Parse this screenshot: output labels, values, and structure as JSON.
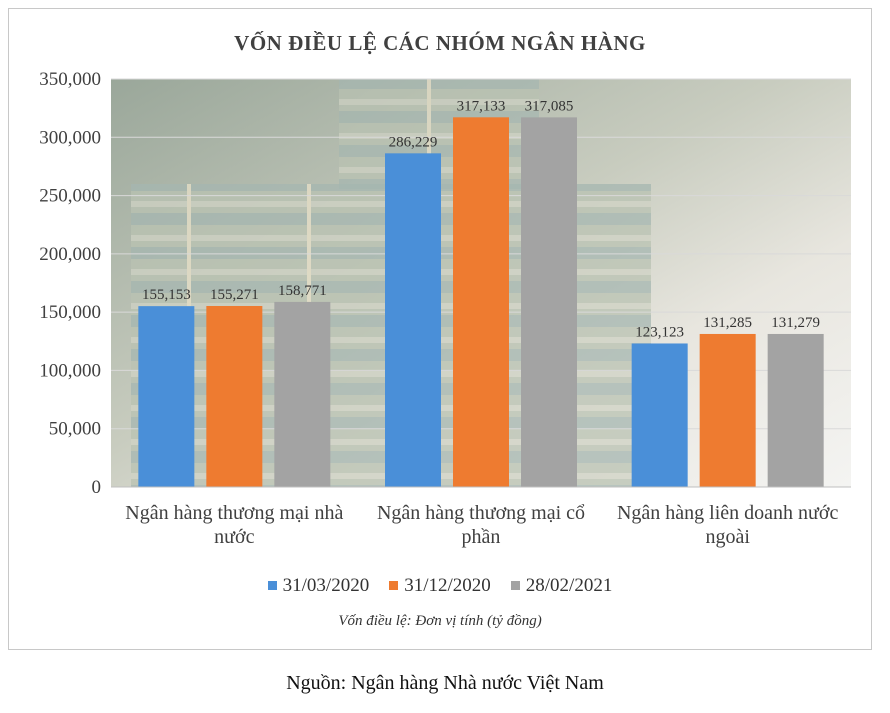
{
  "chart_data": {
    "type": "bar",
    "title": "VỐN ĐIỀU LỆ CÁC NHÓM NGÂN HÀNG",
    "categories": [
      "Ngân hàng thương mại nhà nước",
      "Ngân hàng thương mại cổ phần",
      "Ngân hàng liên doanh nước ngoài"
    ],
    "series": [
      {
        "name": "31/03/2020",
        "values": [
          155153,
          286229,
          123123
        ],
        "labels": [
          "155,153",
          "286,229",
          "123,123"
        ]
      },
      {
        "name": "31/12/2020",
        "values": [
          155271,
          317133,
          131285
        ],
        "labels": [
          "155,271",
          "317,133",
          "131,285"
        ]
      },
      {
        "name": "28/02/2021",
        "values": [
          158771,
          317085,
          131279
        ],
        "labels": [
          "158,771",
          "317,085",
          "131,279"
        ]
      }
    ],
    "ylim": [
      0,
      350000
    ],
    "yticks": [
      "0",
      "50,000",
      "100,000",
      "150,000",
      "200,000",
      "250,000",
      "300,000",
      "350,000"
    ],
    "colors": [
      "#4a8fd8",
      "#ee7b30",
      "#a3a3a3"
    ],
    "grid": true,
    "legend_position": "bottom",
    "note": "Vốn điều lệ: Đơn vị tính (tỷ đồng)"
  },
  "source_caption": "Nguồn: Ngân hàng Nhà nước Việt Nam"
}
